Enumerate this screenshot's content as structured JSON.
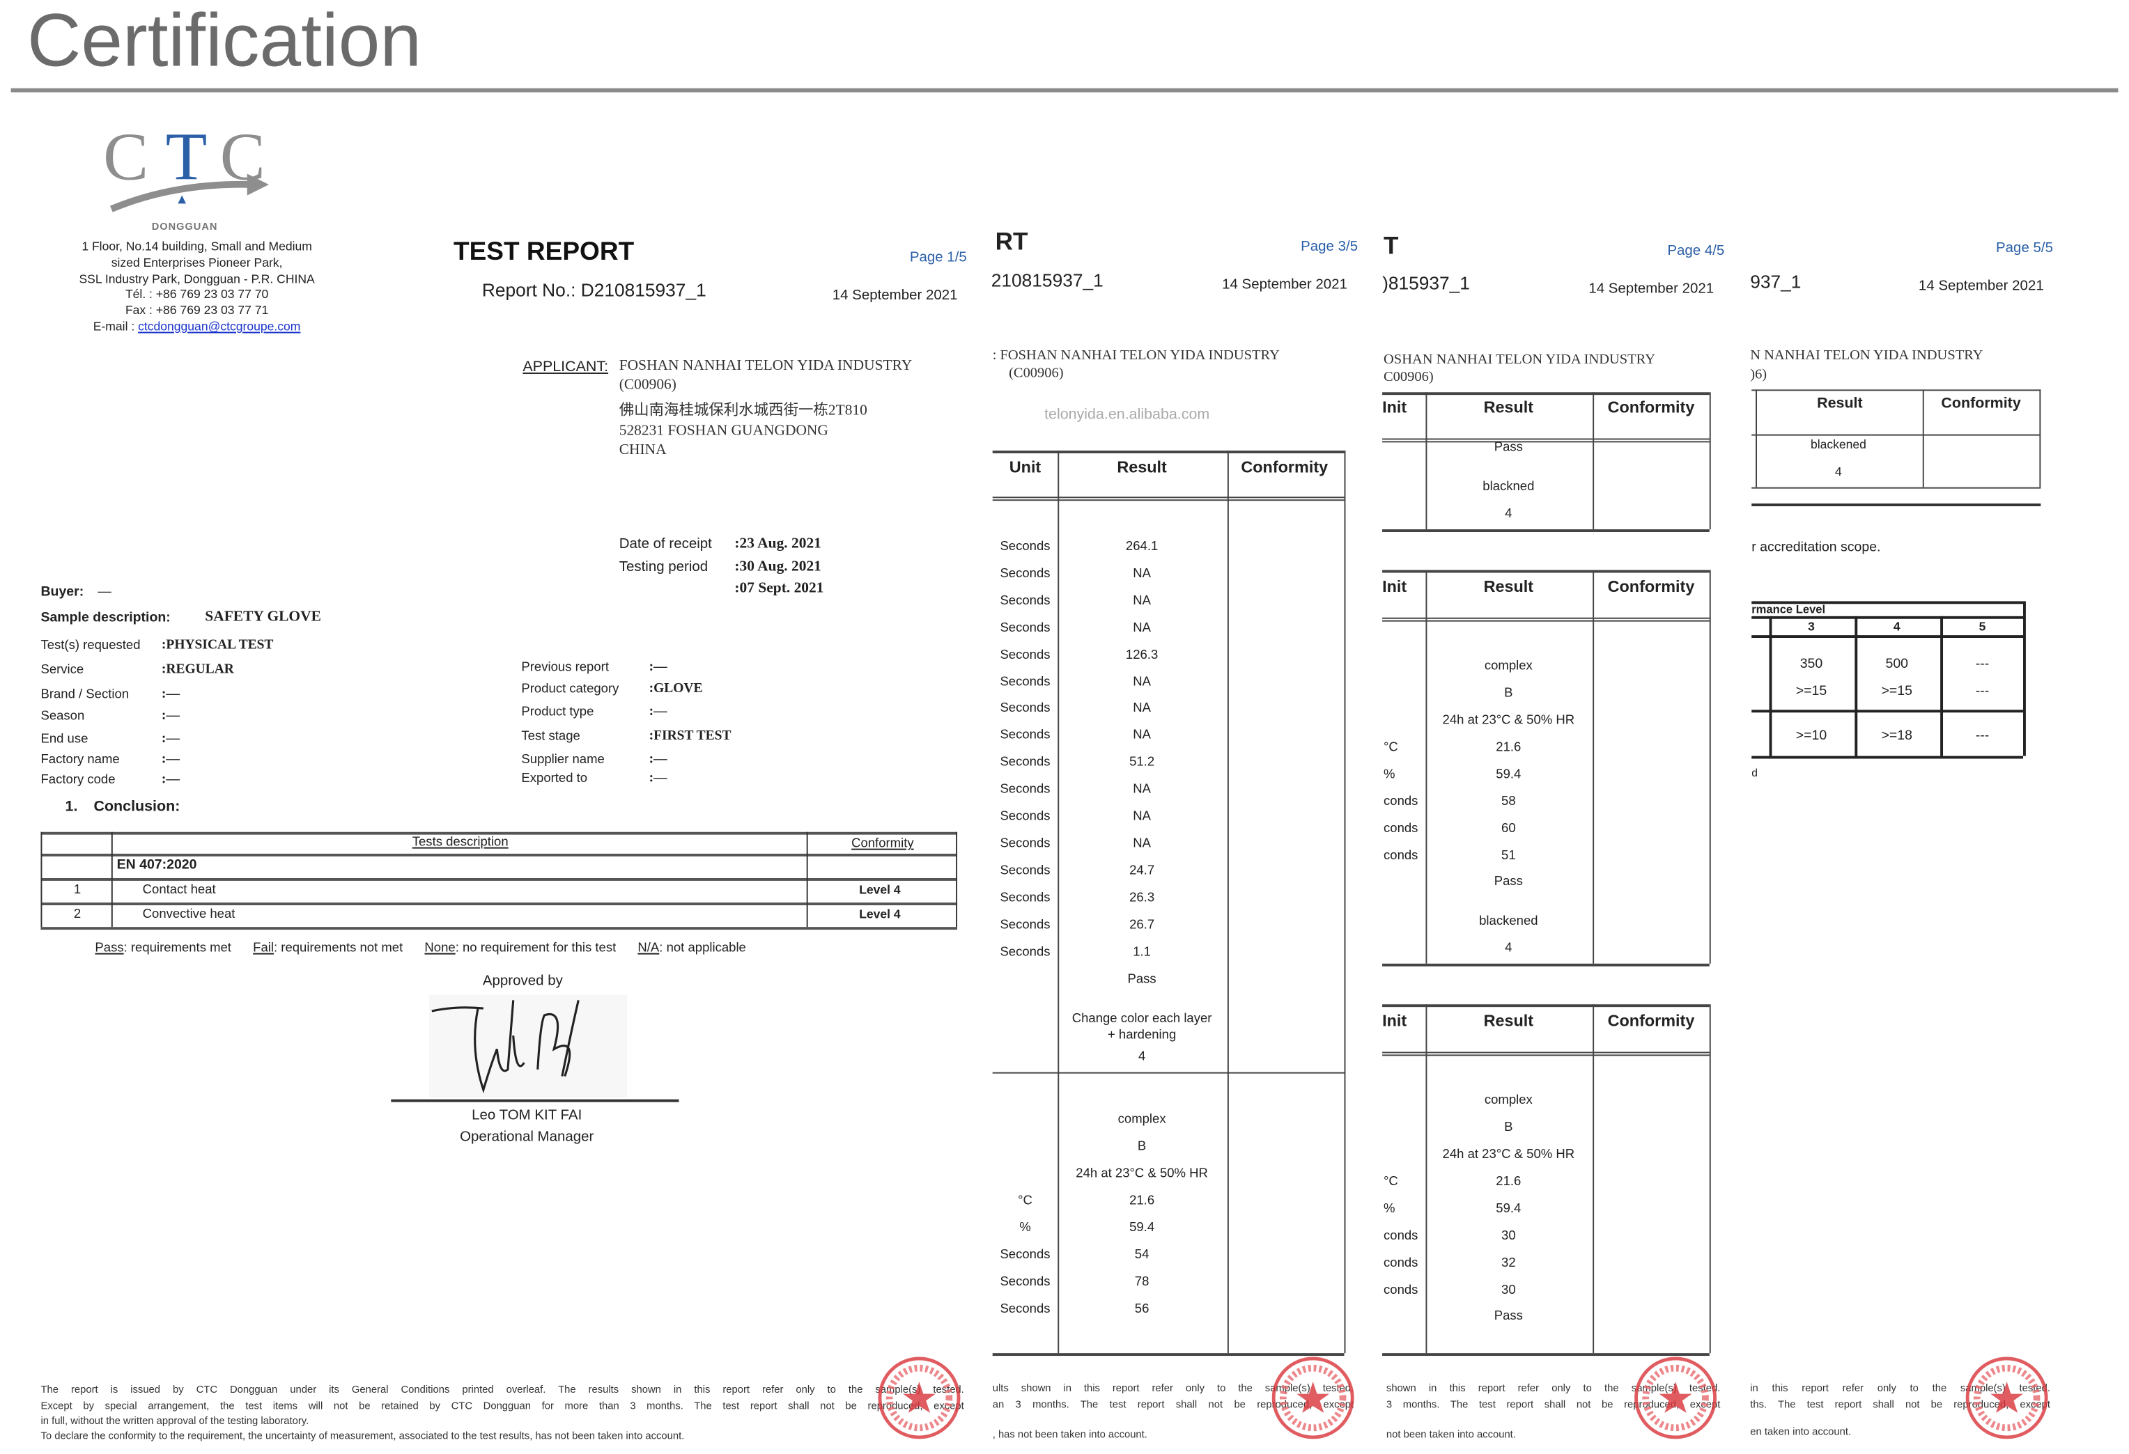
{
  "header": {
    "title": "Certification"
  },
  "logo": {
    "c1": "C",
    "t": "T",
    "c2": "C",
    "city": "DONGGUAN"
  },
  "address": {
    "lines": [
      "1 Floor, No.14 building, Small and Medium",
      "sized Enterprises Pioneer Park,",
      "SSL Industry Park, Dongguan - P.R. CHINA",
      "Tél. : +86 769 23 03 77 70",
      "Fax : +86 769 23 03 77 71"
    ],
    "email_label": "E-mail : ",
    "email": "ctcdongguan@ctcgroupe.com"
  },
  "page1": {
    "title": "TEST REPORT",
    "page": "Page 1/5",
    "report_no": "Report No.: D210815937_1",
    "date": "14 September 2021",
    "applicant_label": "APPLICANT:",
    "applicant_lines": [
      "FOSHAN NANHAI TELON YIDA INDUSTRY",
      "(C00906)",
      "佛山南海桂城保利水城西街一栋2T810",
      "528231 FOSHAN GUANGDONG",
      "CHINA"
    ],
    "receipt_label": "Date of receipt",
    "receipt_value": ":23 Aug.  2021",
    "testing_label": "Testing period",
    "testing_values": [
      ":30 Aug.  2021",
      ":07 Sept.  2021"
    ],
    "buyer_label": "Buyer:",
    "buyer_value": "—",
    "sample_label": "Sample description:",
    "sample_value": "SAFETY GLOVE",
    "fields_left": [
      {
        "label": "Test(s) requested",
        "value": ":PHYSICAL TEST"
      },
      {
        "label": "Service",
        "value": ":REGULAR"
      },
      {
        "label": "Brand / Section",
        "value": ":—"
      },
      {
        "label": "Season",
        "value": ":—"
      },
      {
        "label": "End use",
        "value": ":—"
      },
      {
        "label": "Factory name",
        "value": ":—"
      },
      {
        "label": "Factory code",
        "value": ":—"
      }
    ],
    "fields_right": [
      {
        "label": "Previous report",
        "value": ":—"
      },
      {
        "label": "Product category",
        "value": ":GLOVE"
      },
      {
        "label": "Product type",
        "value": ":—"
      },
      {
        "label": "Test stage",
        "value": ":FIRST TEST"
      },
      {
        "label": "Supplier name",
        "value": ":—"
      },
      {
        "label": "Exported to",
        "value": ":—"
      }
    ],
    "conclusion_no": "1.",
    "conclusion": "Conclusion:",
    "table": {
      "col_desc": "Tests description",
      "col_conf": "Conformity",
      "standard": "EN 407:2020",
      "rows": [
        {
          "no": "1",
          "desc": "Contact heat",
          "conf": "Level 4"
        },
        {
          "no": "2",
          "desc": "Convective heat",
          "conf": "Level 4"
        }
      ]
    },
    "legend": [
      {
        "key": "Pass",
        "text": ": requirements met"
      },
      {
        "key": "Fail",
        "text": ": requirements not met"
      },
      {
        "key": "None",
        "text": ": no requirement for this test"
      },
      {
        "key": "N/A",
        "text": ": not applicable"
      }
    ],
    "approved_by": "Approved by",
    "signer": "Leo TOM KIT FAI",
    "signer_title": "Operational Manager",
    "footer": [
      "The report is issued by CTC Dongguan under its General Conditions printed overleaf. The results shown in this report refer only to the sample(s) tested.",
      "Except by special arrangement, the test items will not be retained by CTC Dongguan for more than 3 months. The test report shall not be reproduced, except",
      "in full, without the written approval of the testing laboratory.",
      "To declare the conformity to the requirement, the uncertainty of measurement, associated to the test results, has not been taken into account."
    ]
  },
  "page3": {
    "title": "RT",
    "page": "Page 3/5",
    "report_no": "210815937_1",
    "date": "14 September 2021",
    "applicant_lines": [
      ":  FOSHAN NANHAI TELON YIDA INDUSTRY",
      "(C00906)"
    ],
    "headers": [
      "Unit",
      "Result",
      "Conformity"
    ],
    "rows": [
      {
        "unit": "Seconds",
        "result": "264.1"
      },
      {
        "unit": "Seconds",
        "result": "NA"
      },
      {
        "unit": "Seconds",
        "result": "NA"
      },
      {
        "unit": "Seconds",
        "result": "NA"
      },
      {
        "unit": "Seconds",
        "result": "126.3"
      },
      {
        "unit": "Seconds",
        "result": "NA"
      },
      {
        "unit": "Seconds",
        "result": "NA"
      },
      {
        "unit": "Seconds",
        "result": "NA"
      },
      {
        "unit": "Seconds",
        "result": "51.2"
      },
      {
        "unit": "Seconds",
        "result": "NA"
      },
      {
        "unit": "Seconds",
        "result": "NA"
      },
      {
        "unit": "Seconds",
        "result": "NA"
      },
      {
        "unit": "Seconds",
        "result": "24.7"
      },
      {
        "unit": "Seconds",
        "result": "26.3"
      },
      {
        "unit": "Seconds",
        "result": "26.7"
      },
      {
        "unit": "Seconds",
        "result": "1.1"
      },
      {
        "unit": "",
        "result": "Pass"
      },
      {
        "unit": "",
        "result": "Change color each layer"
      },
      {
        "unit": "",
        "result": "+ hardening"
      },
      {
        "unit": "",
        "result": "4"
      }
    ],
    "rows2": [
      {
        "unit": "",
        "result": "complex"
      },
      {
        "unit": "",
        "result": "B"
      },
      {
        "unit": "",
        "result": "24h at 23°C & 50% HR"
      },
      {
        "unit": "°C",
        "result": "21.6"
      },
      {
        "unit": "%",
        "result": "59.4"
      },
      {
        "unit": "Seconds",
        "result": "54"
      },
      {
        "unit": "Seconds",
        "result": "78"
      },
      {
        "unit": "Seconds",
        "result": "56"
      }
    ],
    "footer": [
      "ults shown in this report refer only to the sample(s) tested.",
      "an 3 months. The test report shall not be reproduced, except",
      ", has not been taken into account."
    ]
  },
  "page4": {
    "title": "T",
    "page": "Page 4/5",
    "report_no": ")815937_1",
    "date": "14 September 2021",
    "applicant_lines": [
      "OSHAN NANHAI TELON YIDA INDUSTRY",
      "C00906)"
    ],
    "headers": [
      "Init",
      "Result",
      "Conformity"
    ],
    "table1": [
      {
        "unit": "",
        "result": "Pass"
      },
      {
        "unit": "",
        "result": "blackned"
      },
      {
        "unit": "",
        "result": "4"
      }
    ],
    "table2": [
      {
        "unit": "",
        "result": "complex"
      },
      {
        "unit": "",
        "result": "B"
      },
      {
        "unit": "",
        "result": "24h at 23°C & 50% HR"
      },
      {
        "unit": "°C",
        "result": "21.6"
      },
      {
        "unit": "%",
        "result": "59.4"
      },
      {
        "unit": "conds",
        "result": "58"
      },
      {
        "unit": "conds",
        "result": "60"
      },
      {
        "unit": "conds",
        "result": "51"
      },
      {
        "unit": "",
        "result": "Pass"
      },
      {
        "unit": "",
        "result": "blackened"
      },
      {
        "unit": "",
        "result": "4"
      }
    ],
    "table3": [
      {
        "unit": "",
        "result": "complex"
      },
      {
        "unit": "",
        "result": "B"
      },
      {
        "unit": "",
        "result": "24h at 23°C & 50% HR"
      },
      {
        "unit": "°C",
        "result": "21.6"
      },
      {
        "unit": "%",
        "result": "59.4"
      },
      {
        "unit": "conds",
        "result": "30"
      },
      {
        "unit": "conds",
        "result": "32"
      },
      {
        "unit": "conds",
        "result": "30"
      },
      {
        "unit": "",
        "result": "Pass"
      }
    ],
    "footer": [
      "shown in this report refer only to the sample(s) tested.",
      "3 months. The test report shall not be reproduced, except",
      "not been taken into account."
    ]
  },
  "page5": {
    "page": "Page 5/5",
    "report_no": "937_1",
    "date": "14 September 2021",
    "applicant_lines": [
      "N NANHAI TELON YIDA INDUSTRY",
      ")6)"
    ],
    "headers": [
      "Result",
      "Conformity"
    ],
    "rows": [
      {
        "result": "blackened"
      },
      {
        "result": "4"
      }
    ],
    "accreditation": "r accreditation scope.",
    "perf_title": "rmance Level",
    "perf_levels": [
      "3",
      "4",
      "5"
    ],
    "perf_rows": [
      [
        "350",
        "500",
        "---"
      ],
      [
        ">=15",
        ">=15",
        "---"
      ],
      [
        ">=10",
        ">=18",
        "---"
      ]
    ],
    "note": "d",
    "footer": [
      "in this report refer only to the sample(s) tested.",
      "ths. The test report shall not be reproduced, except",
      "en taken into account."
    ]
  },
  "watermark": "telonyida.en.alibaba.com",
  "colors": {
    "accent_blue": "#2b5fa8",
    "stamp_red": "#d9343a",
    "rule_gray": "#8a8a8a"
  }
}
